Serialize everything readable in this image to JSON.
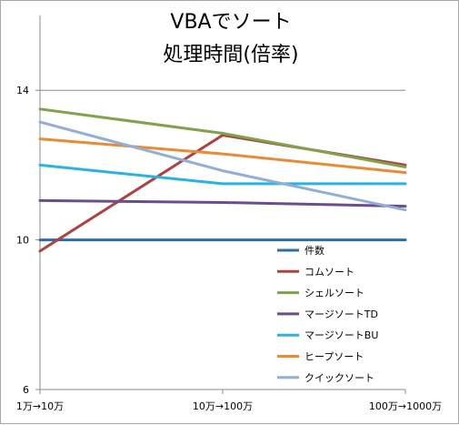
{
  "chart_data": {
    "type": "line",
    "title_lines": [
      "VBAでソート",
      "処理時間(倍率)"
    ],
    "categories": [
      "1万→10万",
      "10万→100万",
      "100万→1000万"
    ],
    "ylim": [
      6,
      16
    ],
    "yticks": [
      "6",
      "10",
      "14"
    ],
    "ytick_values": [
      6,
      10,
      14
    ],
    "grid": "horizontal",
    "legend_position": "right",
    "series": [
      {
        "name": "件数",
        "color": "#2e6da4",
        "values": [
          10,
          10,
          10
        ]
      },
      {
        "name": "コムソート",
        "color": "#b0413e",
        "values": [
          9.7,
          12.8,
          12.0
        ]
      },
      {
        "name": "シェルソート",
        "color": "#7fa34a",
        "values": [
          13.5,
          12.85,
          11.95
        ]
      },
      {
        "name": "マージソートTD",
        "color": "#6a4d8f",
        "values": [
          11.05,
          11.0,
          10.9
        ]
      },
      {
        "name": "マージソートBU",
        "color": "#27b3e6",
        "values": [
          12.0,
          11.5,
          11.5
        ]
      },
      {
        "name": "ヒープソート",
        "color": "#ec8a34",
        "values": [
          12.7,
          12.3,
          11.8
        ]
      },
      {
        "name": "クイックソート",
        "color": "#93aed6",
        "values": [
          13.15,
          11.85,
          10.8
        ]
      }
    ]
  }
}
